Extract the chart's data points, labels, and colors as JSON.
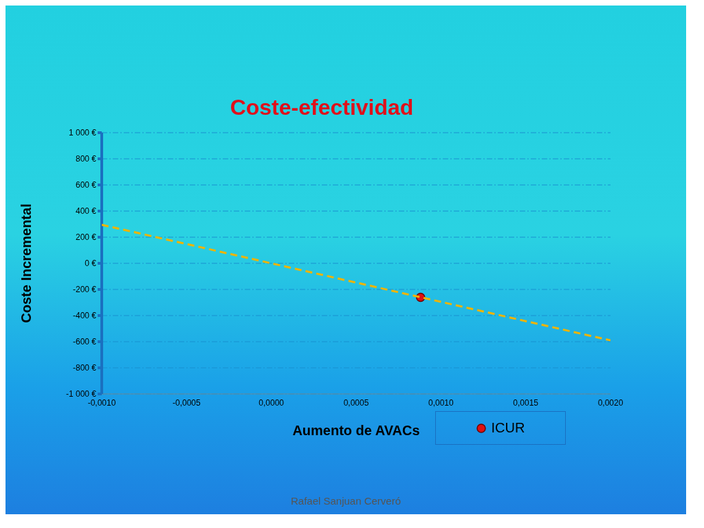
{
  "chart_data": {
    "type": "scatter",
    "title": "Coste-efectividad",
    "xlabel": "Aumento de AVACs",
    "ylabel": "Coste Incremental",
    "xlim": [
      -0.001,
      0.002
    ],
    "xticks": [
      {
        "value": -0.001,
        "label": "-0,0010"
      },
      {
        "value": -0.0005,
        "label": "-0,0005"
      },
      {
        "value": 0,
        "label": "0,0000"
      },
      {
        "value": 0.0005,
        "label": "0,0005"
      },
      {
        "value": 0.001,
        "label": "0,0010"
      },
      {
        "value": 0.0015,
        "label": "0,0015"
      },
      {
        "value": 0.002,
        "label": "0,0020"
      }
    ],
    "ylim": [
      -1000,
      1000
    ],
    "yticks": [
      {
        "value": -1000,
        "label": "-1 000 €"
      },
      {
        "value": -800,
        "label": "-800 €"
      },
      {
        "value": -600,
        "label": "-600 €"
      },
      {
        "value": -400,
        "label": "-400 €"
      },
      {
        "value": -200,
        "label": "-200 €"
      },
      {
        "value": 0,
        "label": "0 €"
      },
      {
        "value": 200,
        "label": "200 €"
      },
      {
        "value": 400,
        "label": "400 €"
      },
      {
        "value": 600,
        "label": "600 €"
      },
      {
        "value": 800,
        "label": "800 €"
      },
      {
        "value": 1000,
        "label": "1 000 €"
      }
    ],
    "grid": "y",
    "legend": "bottom right",
    "series": [
      {
        "name": "ICUR",
        "color": "#e01010",
        "x": [
          0.00088
        ],
        "values": [
          -260
        ],
        "marker": "circle"
      },
      {
        "type": "line",
        "color": "#f0b400",
        "x": [
          -0.001,
          0.002
        ],
        "values": [
          295,
          -590
        ],
        "line_style": "dashed",
        "marker": "none"
      }
    ],
    "annotations": [
      "Rafael Sanjuan Cerveró"
    ]
  }
}
